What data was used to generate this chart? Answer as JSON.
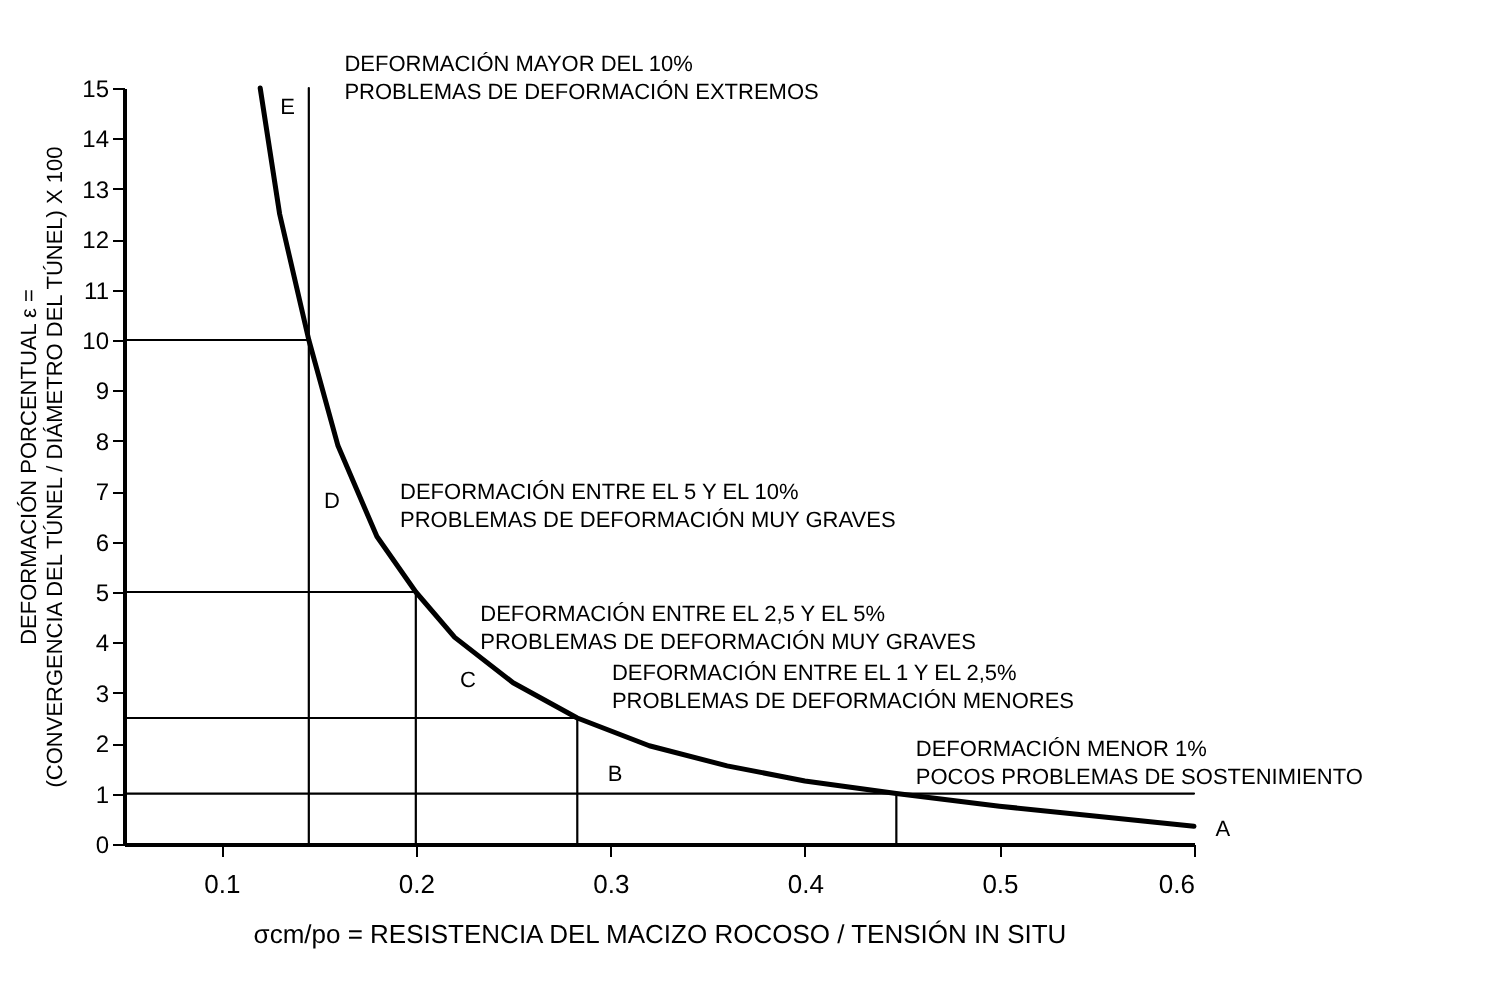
{
  "chart_data": {
    "type": "line",
    "xlabel": "σcm/po = RESISTENCIA DEL MACIZO ROCOSO / TENSIÓN IN SITU",
    "ylabel": "DEFORMACIÓN PORCENTUAL ε =\n(CONVERGENCIA DEL TÚNEL / DIÁMETRO DEL TÚNEL) X 100",
    "xlim": [
      0.05,
      0.6
    ],
    "ylim": [
      0,
      15
    ],
    "xticks": [
      {
        "value": 0.1,
        "label": "0.1"
      },
      {
        "value": 0.2,
        "label": "0.2"
      },
      {
        "value": 0.3,
        "label": "0.3"
      },
      {
        "value": 0.4,
        "label": "0.4"
      },
      {
        "value": 0.5,
        "label": "0.5"
      },
      {
        "value": 0.6,
        "label": "0.6"
      }
    ],
    "yticks": [
      0,
      1,
      2,
      3,
      4,
      5,
      6,
      7,
      8,
      9,
      10,
      11,
      12,
      13,
      14,
      15
    ],
    "grid": false,
    "marker": "none",
    "line_style": "solid",
    "series": [
      {
        "color": "#000000",
        "x": [
          0.12,
          0.13,
          0.145,
          0.16,
          0.18,
          0.2,
          0.22,
          0.25,
          0.283,
          0.32,
          0.36,
          0.4,
          0.447,
          0.5,
          0.55,
          0.6
        ],
        "values": [
          15,
          12.5,
          10,
          7.9,
          6.1,
          5,
          4.1,
          3.2,
          2.5,
          1.95,
          1.55,
          1.25,
          1.0,
          0.75,
          0.55,
          0.35
        ]
      },
      {
        "color": "#000000",
        "x": [
          0.145,
          0.145
        ],
        "values": [
          0,
          15
        ]
      },
      {
        "color": "#000000",
        "x": [
          0.05,
          0.145
        ],
        "values": [
          10,
          10
        ]
      },
      {
        "color": "#000000",
        "x": [
          0.05,
          0.2,
          0.2
        ],
        "values": [
          5,
          5,
          0
        ]
      },
      {
        "color": "#000000",
        "x": [
          0.05,
          0.283,
          0.283
        ],
        "values": [
          2.5,
          2.5,
          0
        ]
      },
      {
        "color": "#000000",
        "x": [
          0.05,
          0.6
        ],
        "values": [
          1,
          1
        ]
      },
      {
        "color": "#000000",
        "x": [
          0.447,
          0.447
        ],
        "values": [
          0,
          1
        ]
      }
    ],
    "annotations": [
      "E",
      "D",
      "C",
      "B",
      "A",
      "DEFORMACIÓN MAYOR DEL 10%\nPROBLEMAS DE DEFORMACIÓN EXTREMOS",
      "DEFORMACIÓN ENTRE EL 5 Y EL 10%\nPROBLEMAS DE DEFORMACIÓN MUY GRAVES",
      "DEFORMACIÓN ENTRE EL 2,5 Y EL 5%\nPROBLEMAS DE DEFORMACIÓN MUY GRAVES",
      "DEFORMACIÓN ENTRE EL 1 Y EL 2,5%\nPROBLEMAS DE DEFORMACIÓN MENORES",
      "DEFORMACIÓN  MENOR 1%\nPOCOS PROBLEMAS DE SOSTENIMIENTO"
    ]
  }
}
